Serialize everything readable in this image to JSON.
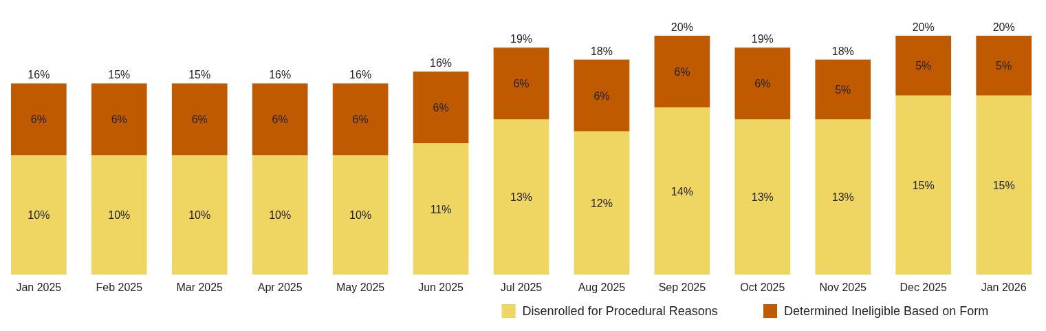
{
  "chart_data": {
    "type": "bar",
    "stacked": true,
    "categories": [
      "Jan 2025",
      "Feb 2025",
      "Mar 2025",
      "Apr 2025",
      "May 2025",
      "Jun 2025",
      "Jul 2025",
      "Aug 2025",
      "Sep 2025",
      "Oct 2025",
      "Nov 2025",
      "Dec 2025",
      "Jan 2026"
    ],
    "series": [
      {
        "name": "Disenrolled for Procedural Reasons",
        "color": "#efd562",
        "values": [
          10,
          10,
          10,
          10,
          10,
          11,
          13,
          12,
          14,
          13,
          13,
          15,
          15
        ],
        "value_labels": [
          "10%",
          "10%",
          "10%",
          "10%",
          "10%",
          "11%",
          "13%",
          "12%",
          "14%",
          "13%",
          "13%",
          "15%",
          "15%"
        ]
      },
      {
        "name": "Determined Ineligible Based on Form",
        "color": "#bf5a00",
        "values": [
          6,
          6,
          6,
          6,
          6,
          6,
          6,
          6,
          6,
          6,
          5,
          5,
          5
        ],
        "value_labels": [
          "6%",
          "6%",
          "6%",
          "6%",
          "6%",
          "6%",
          "6%",
          "6%",
          "6%",
          "6%",
          "5%",
          "5%",
          "5%"
        ]
      }
    ],
    "totals": [
      "16%",
      "15%",
      "15%",
      "16%",
      "16%",
      "16%",
      "19%",
      "18%",
      "20%",
      "19%",
      "18%",
      "20%",
      "20%"
    ],
    "legend": "bottom right"
  }
}
